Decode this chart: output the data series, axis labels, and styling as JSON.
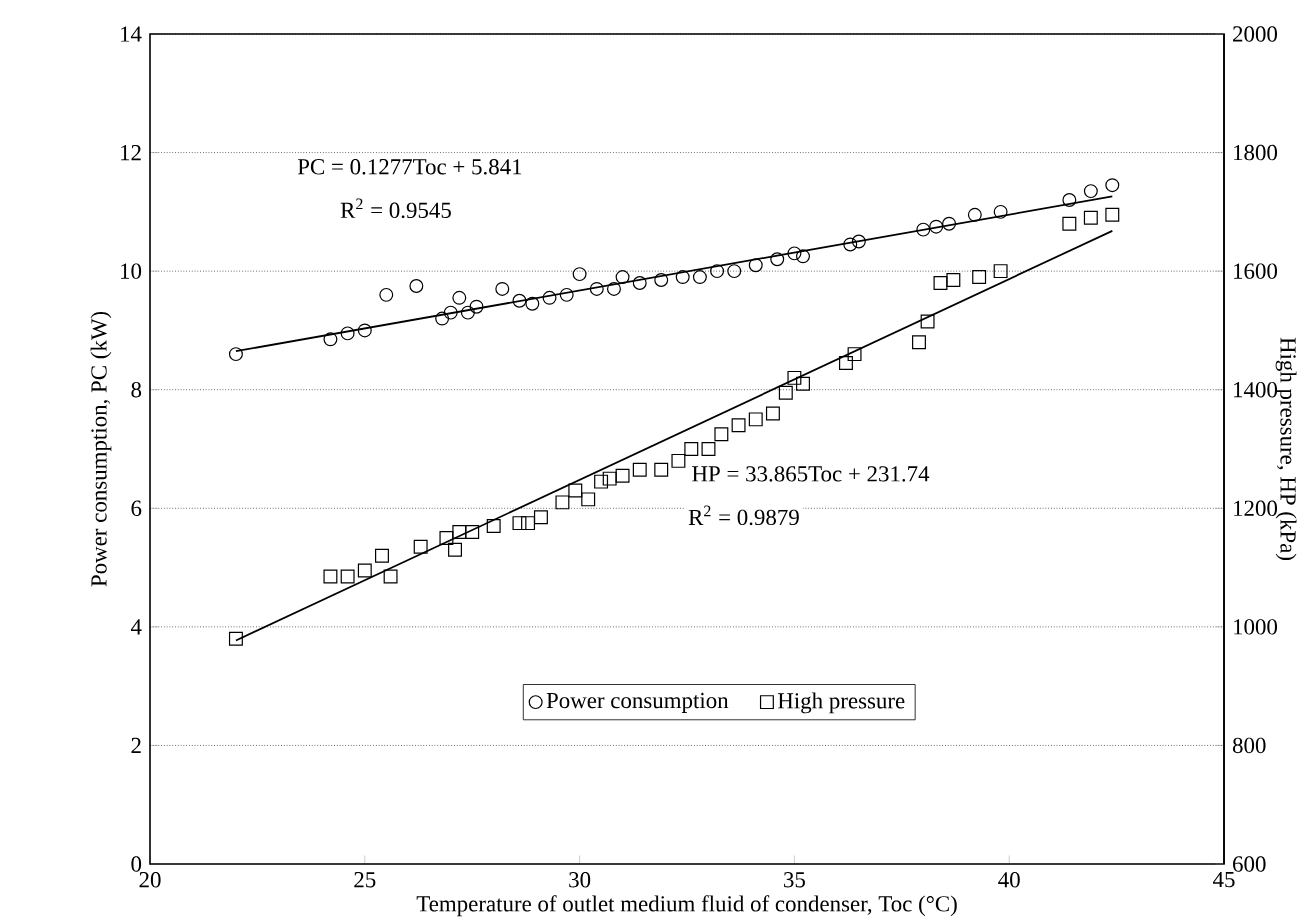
{
  "chart_data": {
    "type": "scatter",
    "xlabel": "Temperature of outlet medium fluid of condenser, Toc (°C)",
    "ylabel": "Power consumption, PC (kW)",
    "y2label": "High pressure, HP (kPa)",
    "xlim": [
      20,
      45
    ],
    "xticks": [
      20,
      25,
      30,
      35,
      40,
      45
    ],
    "ylim": [
      0,
      14
    ],
    "yticks": [
      0,
      2,
      4,
      6,
      8,
      10,
      12,
      14
    ],
    "y2lim": [
      600,
      2000
    ],
    "y2ticks": [
      600,
      800,
      1000,
      1200,
      1400,
      1600,
      1800,
      2000
    ],
    "grid": "y",
    "legend": "bottom",
    "annotations": [
      "PC = 0.1277Toc + 5.841",
      "R$^{2}$ = 0.9545",
      "HP = 33.865Toc + 231.74",
      "R$^{2}$ = 0.9879"
    ],
    "series": [
      {
        "name": "Power consumption",
        "marker": "circle",
        "color": "#000000",
        "x": [
          22,
          24.2,
          24.6,
          25,
          25.5,
          26.2,
          26.8,
          27,
          27.2,
          27.4,
          27.6,
          28.2,
          28.6,
          28.9,
          29.3,
          29.7,
          30,
          30.4,
          30.8,
          31,
          31.4,
          31.9,
          32.4,
          32.8,
          33.2,
          33.6,
          34.1,
          34.6,
          35,
          35.2,
          36.3,
          36.5,
          38,
          38.3,
          38.6,
          39.2,
          39.8,
          41.4,
          41.9,
          42.4
        ],
        "values": [
          8.6,
          8.85,
          8.95,
          9.0,
          9.6,
          9.75,
          9.2,
          9.3,
          9.55,
          9.3,
          9.4,
          9.7,
          9.5,
          9.45,
          9.55,
          9.6,
          9.95,
          9.7,
          9.7,
          9.9,
          9.8,
          9.85,
          9.9,
          9.9,
          10.0,
          10.0,
          10.1,
          10.2,
          10.3,
          10.25,
          10.45,
          10.5,
          10.7,
          10.75,
          10.8,
          10.95,
          11.0,
          11.2,
          11.35,
          11.45
        ]
      },
      {
        "name": "High pressure",
        "marker": "square",
        "color": "#000000",
        "axis": "y2",
        "x": [
          22,
          24.2,
          24.6,
          25,
          25.4,
          25.6,
          26.3,
          26.9,
          27.1,
          27.2,
          27.5,
          28.0,
          28.6,
          28.8,
          29.1,
          29.6,
          29.9,
          30.2,
          30.5,
          30.7,
          31.0,
          31.4,
          31.9,
          32.3,
          32.6,
          33.0,
          33.3,
          33.7,
          34.1,
          34.5,
          34.8,
          35.0,
          35.2,
          36.2,
          36.4,
          37.9,
          38.1,
          38.4,
          38.7,
          39.3,
          39.8,
          41.4,
          41.9,
          42.4
        ],
        "values": [
          980,
          1085,
          1085,
          1095,
          1120,
          1085,
          1135,
          1150,
          1130,
          1160,
          1160,
          1170,
          1175,
          1175,
          1185,
          1210,
          1230,
          1215,
          1245,
          1250,
          1255,
          1265,
          1265,
          1280,
          1300,
          1300,
          1325,
          1340,
          1350,
          1360,
          1395,
          1420,
          1410,
          1445,
          1460,
          1480,
          1515,
          1580,
          1585,
          1590,
          1600,
          1680,
          1690,
          1695
        ]
      },
      {
        "type": "line",
        "marker": "none",
        "color": "#000000",
        "x": [
          22,
          42.4
        ],
        "values": [
          8.65,
          11.26
        ]
      },
      {
        "type": "line",
        "marker": "none",
        "color": "#000000",
        "axis": "y2",
        "x": [
          22,
          42.4
        ],
        "values": [
          977,
          1668
        ]
      }
    ]
  }
}
